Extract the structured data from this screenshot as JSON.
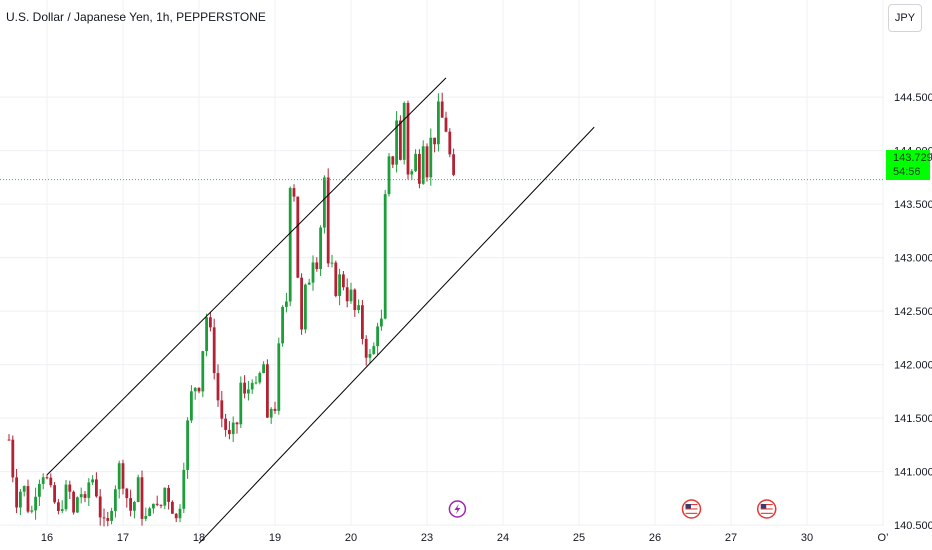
{
  "symbol_title": "U.S. Dollar / Japanese Yen, 1h, PEPPERSTONE",
  "currency_button": "JPY",
  "last_price": "143.729",
  "countdown": "54:56",
  "colors": {
    "up": "#26a69a",
    "up_fill": "#1e9e3a",
    "down": "#b22234",
    "grid": "#eef0f3",
    "channel": "#000000",
    "price_line": "#22c55e",
    "price_tag_bg": "#00ff00",
    "axis_text": "#131722"
  },
  "icons": [
    {
      "name": "lightning-event-icon",
      "x_label": "23"
    },
    {
      "name": "us-flag-event-icon",
      "x_label": "26"
    },
    {
      "name": "us-flag-event-icon",
      "x_label": "27"
    }
  ],
  "chart_data": {
    "type": "candlestick",
    "title": "U.S. Dollar / Japanese Yen, 1h, PEPPERSTONE",
    "x_tick_labels": [
      "16",
      "17",
      "18",
      "19",
      "20",
      "23",
      "24",
      "25",
      "26",
      "27",
      "30",
      "O’"
    ],
    "y_tick_labels": [
      "144.500",
      "144.000",
      "143.500",
      "143.000",
      "142.500",
      "142.000",
      "141.500",
      "141.000",
      "140.500"
    ],
    "ylim": [
      140.4,
      144.9
    ],
    "grid": true,
    "last_price": 143.729,
    "channel_lines": [
      {
        "name": "upper",
        "from": {
          "session": 0,
          "price": 140.97
        },
        "to": {
          "session": 5.25,
          "price": 144.68
        }
      },
      {
        "name": "lower",
        "from": {
          "session": 2.0,
          "price": 140.33
        },
        "to": {
          "session": 7.2,
          "price": 144.22
        }
      }
    ],
    "segments": [
      {
        "from_session": -0.5,
        "to_session": 0.2,
        "waypoints": [
          141.3,
          140.7,
          140.9,
          140.55,
          140.9,
          141.0,
          140.8,
          140.6
        ]
      },
      {
        "from_session": 0.2,
        "to_session": 0.7,
        "waypoints": [
          140.7,
          140.9,
          140.6,
          140.85,
          140.7,
          141.0,
          140.8
        ]
      },
      {
        "from_session": 0.7,
        "to_session": 1.25,
        "waypoints": [
          140.6,
          140.45,
          140.75,
          141.05,
          140.8,
          140.6,
          140.9
        ]
      },
      {
        "from_session": 1.25,
        "to_session": 1.75,
        "waypoints": [
          140.6,
          140.55,
          140.75,
          140.6,
          140.85,
          140.7,
          140.55
        ]
      },
      {
        "from_session": 1.75,
        "to_session": 2.0,
        "waypoints": [
          140.7,
          141.2,
          141.7,
          141.8
        ]
      },
      {
        "from_session": 2.0,
        "to_session": 2.15,
        "waypoints": [
          141.8,
          142.0,
          142.3,
          142.45
        ]
      },
      {
        "from_session": 2.15,
        "to_session": 2.5,
        "waypoints": [
          142.3,
          141.9,
          141.55,
          141.45,
          141.3,
          141.4
        ]
      },
      {
        "from_session": 2.5,
        "to_session": 2.85,
        "waypoints": [
          141.45,
          141.9,
          141.6,
          141.95,
          141.75,
          141.9
        ]
      },
      {
        "from_session": 2.85,
        "to_session": 3.0,
        "waypoints": [
          142.0,
          141.8,
          141.1,
          141.6
        ]
      },
      {
        "from_session": 3.0,
        "to_session": 3.15,
        "waypoints": [
          141.6,
          142.05,
          142.25,
          142.5
        ]
      },
      {
        "from_session": 3.15,
        "to_session": 3.25,
        "waypoints": [
          142.6,
          143.3,
          143.7
        ]
      },
      {
        "from_session": 3.25,
        "to_session": 3.45,
        "waypoints": [
          143.6,
          143.0,
          142.5,
          142.2,
          142.7
        ]
      },
      {
        "from_session": 3.45,
        "to_session": 3.75,
        "waypoints": [
          142.8,
          143.0,
          142.95,
          143.3,
          143.75,
          142.9
        ]
      },
      {
        "from_session": 3.75,
        "to_session": 4.1,
        "waypoints": [
          142.9,
          142.65,
          142.9,
          142.6,
          142.7,
          142.5
        ]
      },
      {
        "from_session": 4.1,
        "to_session": 4.4,
        "waypoints": [
          142.5,
          142.2,
          142.05,
          142.1,
          142.4
        ]
      },
      {
        "from_session": 4.4,
        "to_session": 4.55,
        "waypoints": [
          142.4,
          143.3,
          143.8,
          143.9
        ]
      },
      {
        "from_session": 4.55,
        "to_session": 4.8,
        "waypoints": [
          143.9,
          144.3,
          143.9,
          144.45,
          143.8
        ]
      },
      {
        "from_session": 4.8,
        "to_session": 5.1,
        "waypoints": [
          143.8,
          143.95,
          143.75,
          144.1,
          143.8,
          144.1
        ]
      },
      {
        "from_session": 5.1,
        "to_session": 5.4,
        "waypoints": [
          144.1,
          144.4,
          144.3,
          144.2,
          143.95,
          143.72
        ]
      }
    ]
  }
}
